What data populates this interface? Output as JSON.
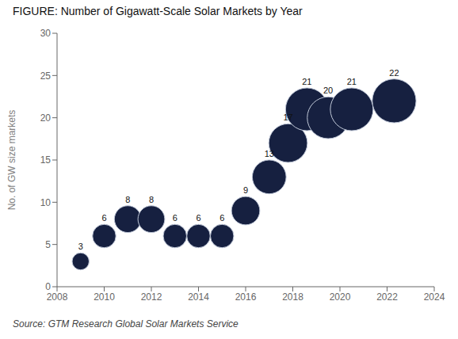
{
  "chart_data": {
    "type": "scatter",
    "title": "FIGURE: Number of Gigawatt-Scale Solar Markets by Year",
    "y_label": "No. of GW size markets",
    "source_plain": "Source: GTM Research ",
    "source_link": "Global Solar Markets Service",
    "x": [
      2009,
      2010,
      2011,
      2012,
      2013,
      2014,
      2015,
      2016,
      2017,
      2017.8,
      2018.6,
      2019.5,
      2020.5,
      2022.3
    ],
    "values": [
      3,
      6,
      8,
      8,
      6,
      6,
      6,
      9,
      13,
      17,
      21,
      20,
      21,
      22
    ],
    "sizes": [
      3,
      6,
      8,
      8,
      6,
      6,
      6,
      9,
      13,
      17,
      21,
      20,
      21,
      22
    ],
    "color": "#162040",
    "xlim": [
      2008,
      2024
    ],
    "ylim": [
      0,
      30
    ],
    "xticks": [
      2008,
      2010,
      2012,
      2014,
      2016,
      2018,
      2020,
      2022,
      2024
    ],
    "yticks": [
      0,
      5,
      10,
      15,
      20,
      25,
      30
    ],
    "grid": false,
    "data_labels": true
  }
}
